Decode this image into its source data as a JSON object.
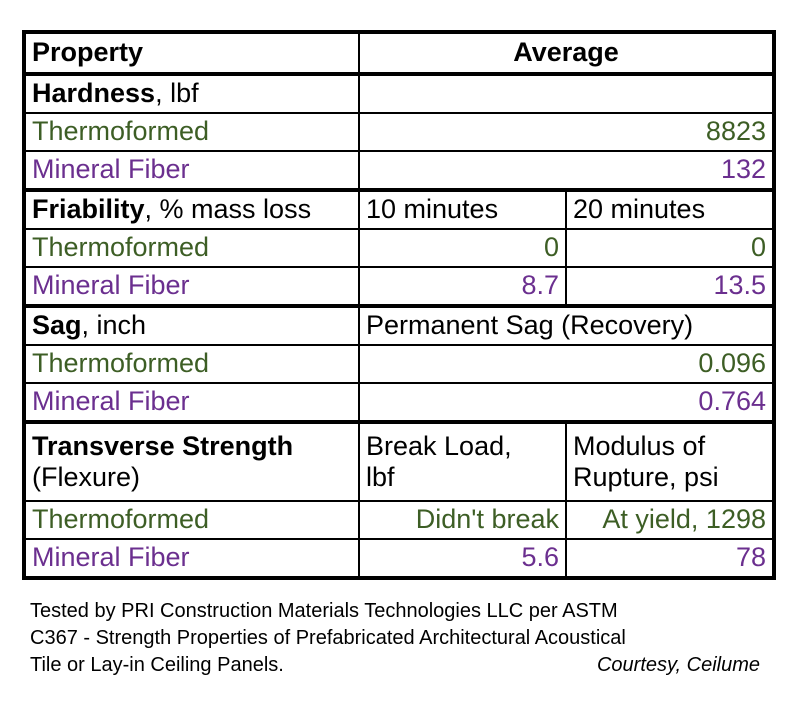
{
  "header": {
    "property": "Property",
    "average": "Average"
  },
  "hardness": {
    "label_bold": "Hardness",
    "label_rest": ", lbf",
    "rows": [
      {
        "name": "Thermoformed",
        "value": "8823"
      },
      {
        "name": "Mineral Fiber",
        "value": "132"
      }
    ]
  },
  "friability": {
    "label_bold": "Friability",
    "label_rest": ", % mass loss",
    "col1": "10 minutes",
    "col2": "20 minutes",
    "rows": [
      {
        "name": "Thermoformed",
        "v1": "0",
        "v2": "0"
      },
      {
        "name": "Mineral Fiber",
        "v1": "8.7",
        "v2": "13.5"
      }
    ]
  },
  "sag": {
    "label_bold": "Sag",
    "label_rest": ", inch",
    "col": "Permanent Sag (Recovery)",
    "rows": [
      {
        "name": "Thermoformed",
        "value": "0.096"
      },
      {
        "name": "Mineral Fiber",
        "value": "0.764"
      }
    ]
  },
  "transverse": {
    "label_bold": "Transverse Strength",
    "label_rest": "(Flexure)",
    "col1_line1": "Break Load,",
    "col1_line2": "lbf",
    "col2_line1": "Modulus of",
    "col2_line2": "Rupture, psi",
    "rows": [
      {
        "name": "Thermoformed",
        "v1": "Didn't break",
        "v2": "At yield, 1298"
      },
      {
        "name": "Mineral Fiber",
        "v1": "5.6",
        "v2": "78"
      }
    ]
  },
  "footnote": {
    "line1": "Tested by PRI Construction Materials Technologies LLC per ASTM",
    "line2": "C367 - Strength Properties of Prefabricated Architectural Acoustical",
    "line3": "Tile or Lay-in Ceiling Panels.",
    "credit": "Courtesy, Ceilume"
  },
  "colors": {
    "thermoformed": "#3d5e25",
    "mineral_fiber": "#6b2f8f"
  }
}
